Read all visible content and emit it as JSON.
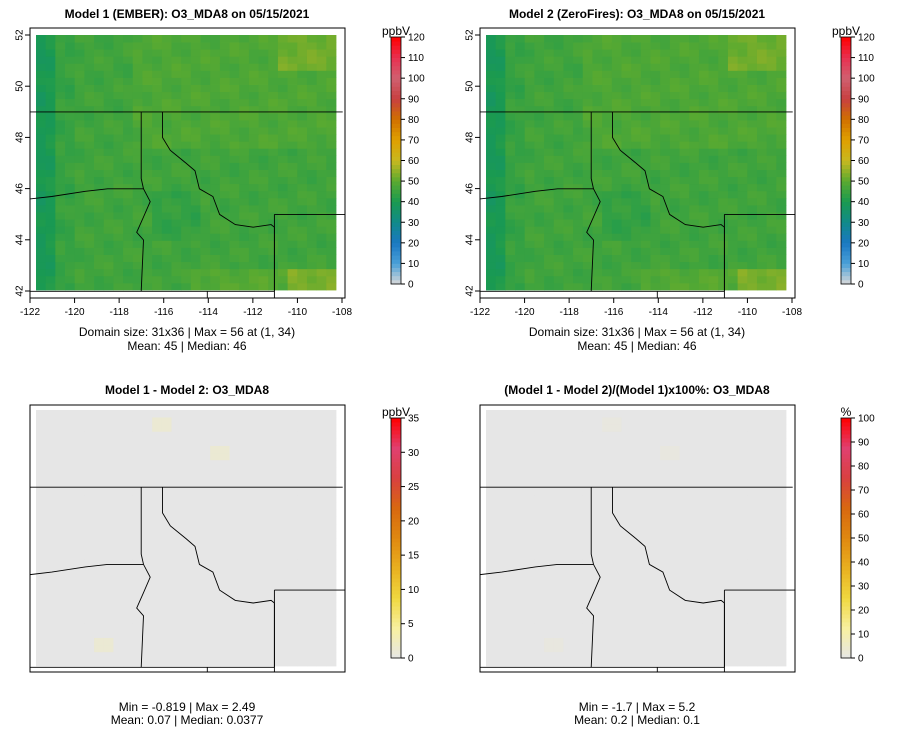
{
  "chart_data": [
    {
      "type": "heatmap",
      "title": "Model 1 (EMBER): O3_MDA8 on 05/15/2021",
      "x_ticks": [
        -122,
        -120,
        -118,
        -116,
        -114,
        -112,
        -110,
        -108
      ],
      "y_ticks": [
        42,
        44,
        46,
        48,
        50,
        52
      ],
      "colorbar_unit": "ppbV",
      "colorbar_ticks": [
        0,
        10,
        20,
        30,
        40,
        50,
        60,
        70,
        80,
        90,
        100,
        110,
        120
      ],
      "colorbar_range": [
        0,
        120
      ],
      "stats_line1": "Domain size: 31x36 | Max = 56 at (1, 34)",
      "stats_line2": "Mean: 45 |  Median: 46",
      "field": "model1",
      "show_axes": true,
      "colors": [
        "#d9d9d9",
        "#4aa0d8",
        "#1a78c2",
        "#108a8a",
        "#1a9a50",
        "#5aaa30",
        "#c8b820",
        "#e0a000",
        "#d07000",
        "#c84040",
        "#d06070",
        "#e83050",
        "#ff0000"
      ]
    },
    {
      "type": "heatmap",
      "title": "Model 2 (ZeroFires): O3_MDA8 on 05/15/2021",
      "x_ticks": [
        -122,
        -120,
        -118,
        -116,
        -114,
        -112,
        -110,
        -108
      ],
      "y_ticks": [
        42,
        44,
        46,
        48,
        50,
        52
      ],
      "colorbar_unit": "ppbV",
      "colorbar_ticks": [
        0,
        10,
        20,
        30,
        40,
        50,
        60,
        70,
        80,
        90,
        100,
        110,
        120
      ],
      "colorbar_range": [
        0,
        120
      ],
      "stats_line1": "Domain size: 31x36 | Max = 56 at (1, 34)",
      "stats_line2": "Mean: 45 |  Median: 46",
      "field": "model2",
      "show_axes": true,
      "colors": [
        "#d9d9d9",
        "#4aa0d8",
        "#1a78c2",
        "#108a8a",
        "#1a9a50",
        "#5aaa30",
        "#c8b820",
        "#e0a000",
        "#d07000",
        "#c84040",
        "#d06070",
        "#e83050",
        "#ff0000"
      ]
    },
    {
      "type": "heatmap",
      "title": "Model 1 - Model 2: O3_MDA8",
      "colorbar_unit": "ppbV",
      "colorbar_ticks": [
        0,
        5,
        10,
        15,
        20,
        25,
        30,
        35
      ],
      "colorbar_range": [
        0,
        35
      ],
      "stats_line1": "Min = -0.819 | Max = 2.49",
      "stats_line2": "Mean: 0.07 |  Median: 0.0377",
      "field": "diff",
      "show_axes": false,
      "colors": [
        "#e6e6e6",
        "#f8f0a0",
        "#f0d840",
        "#e8b020",
        "#e08810",
        "#d86810",
        "#d84040",
        "#e04070",
        "#ff0000"
      ]
    },
    {
      "type": "heatmap",
      "title": "(Model 1 - Model 2)/(Model 1)x100%: O3_MDA8",
      "colorbar_unit": "%",
      "colorbar_ticks": [
        0,
        10,
        20,
        30,
        40,
        50,
        60,
        70,
        80,
        90,
        100
      ],
      "colorbar_range": [
        0,
        100
      ],
      "stats_line1": "Min = -1.7 | Max = 5.2",
      "stats_line2": "Mean: 0.2 |  Median: 0.1",
      "field": "diff",
      "show_axes": false,
      "colors": [
        "#e6e6e6",
        "#f8f0a0",
        "#f0d840",
        "#e8b020",
        "#e08810",
        "#d86810",
        "#d84040",
        "#e04070",
        "#ff0000"
      ]
    }
  ]
}
